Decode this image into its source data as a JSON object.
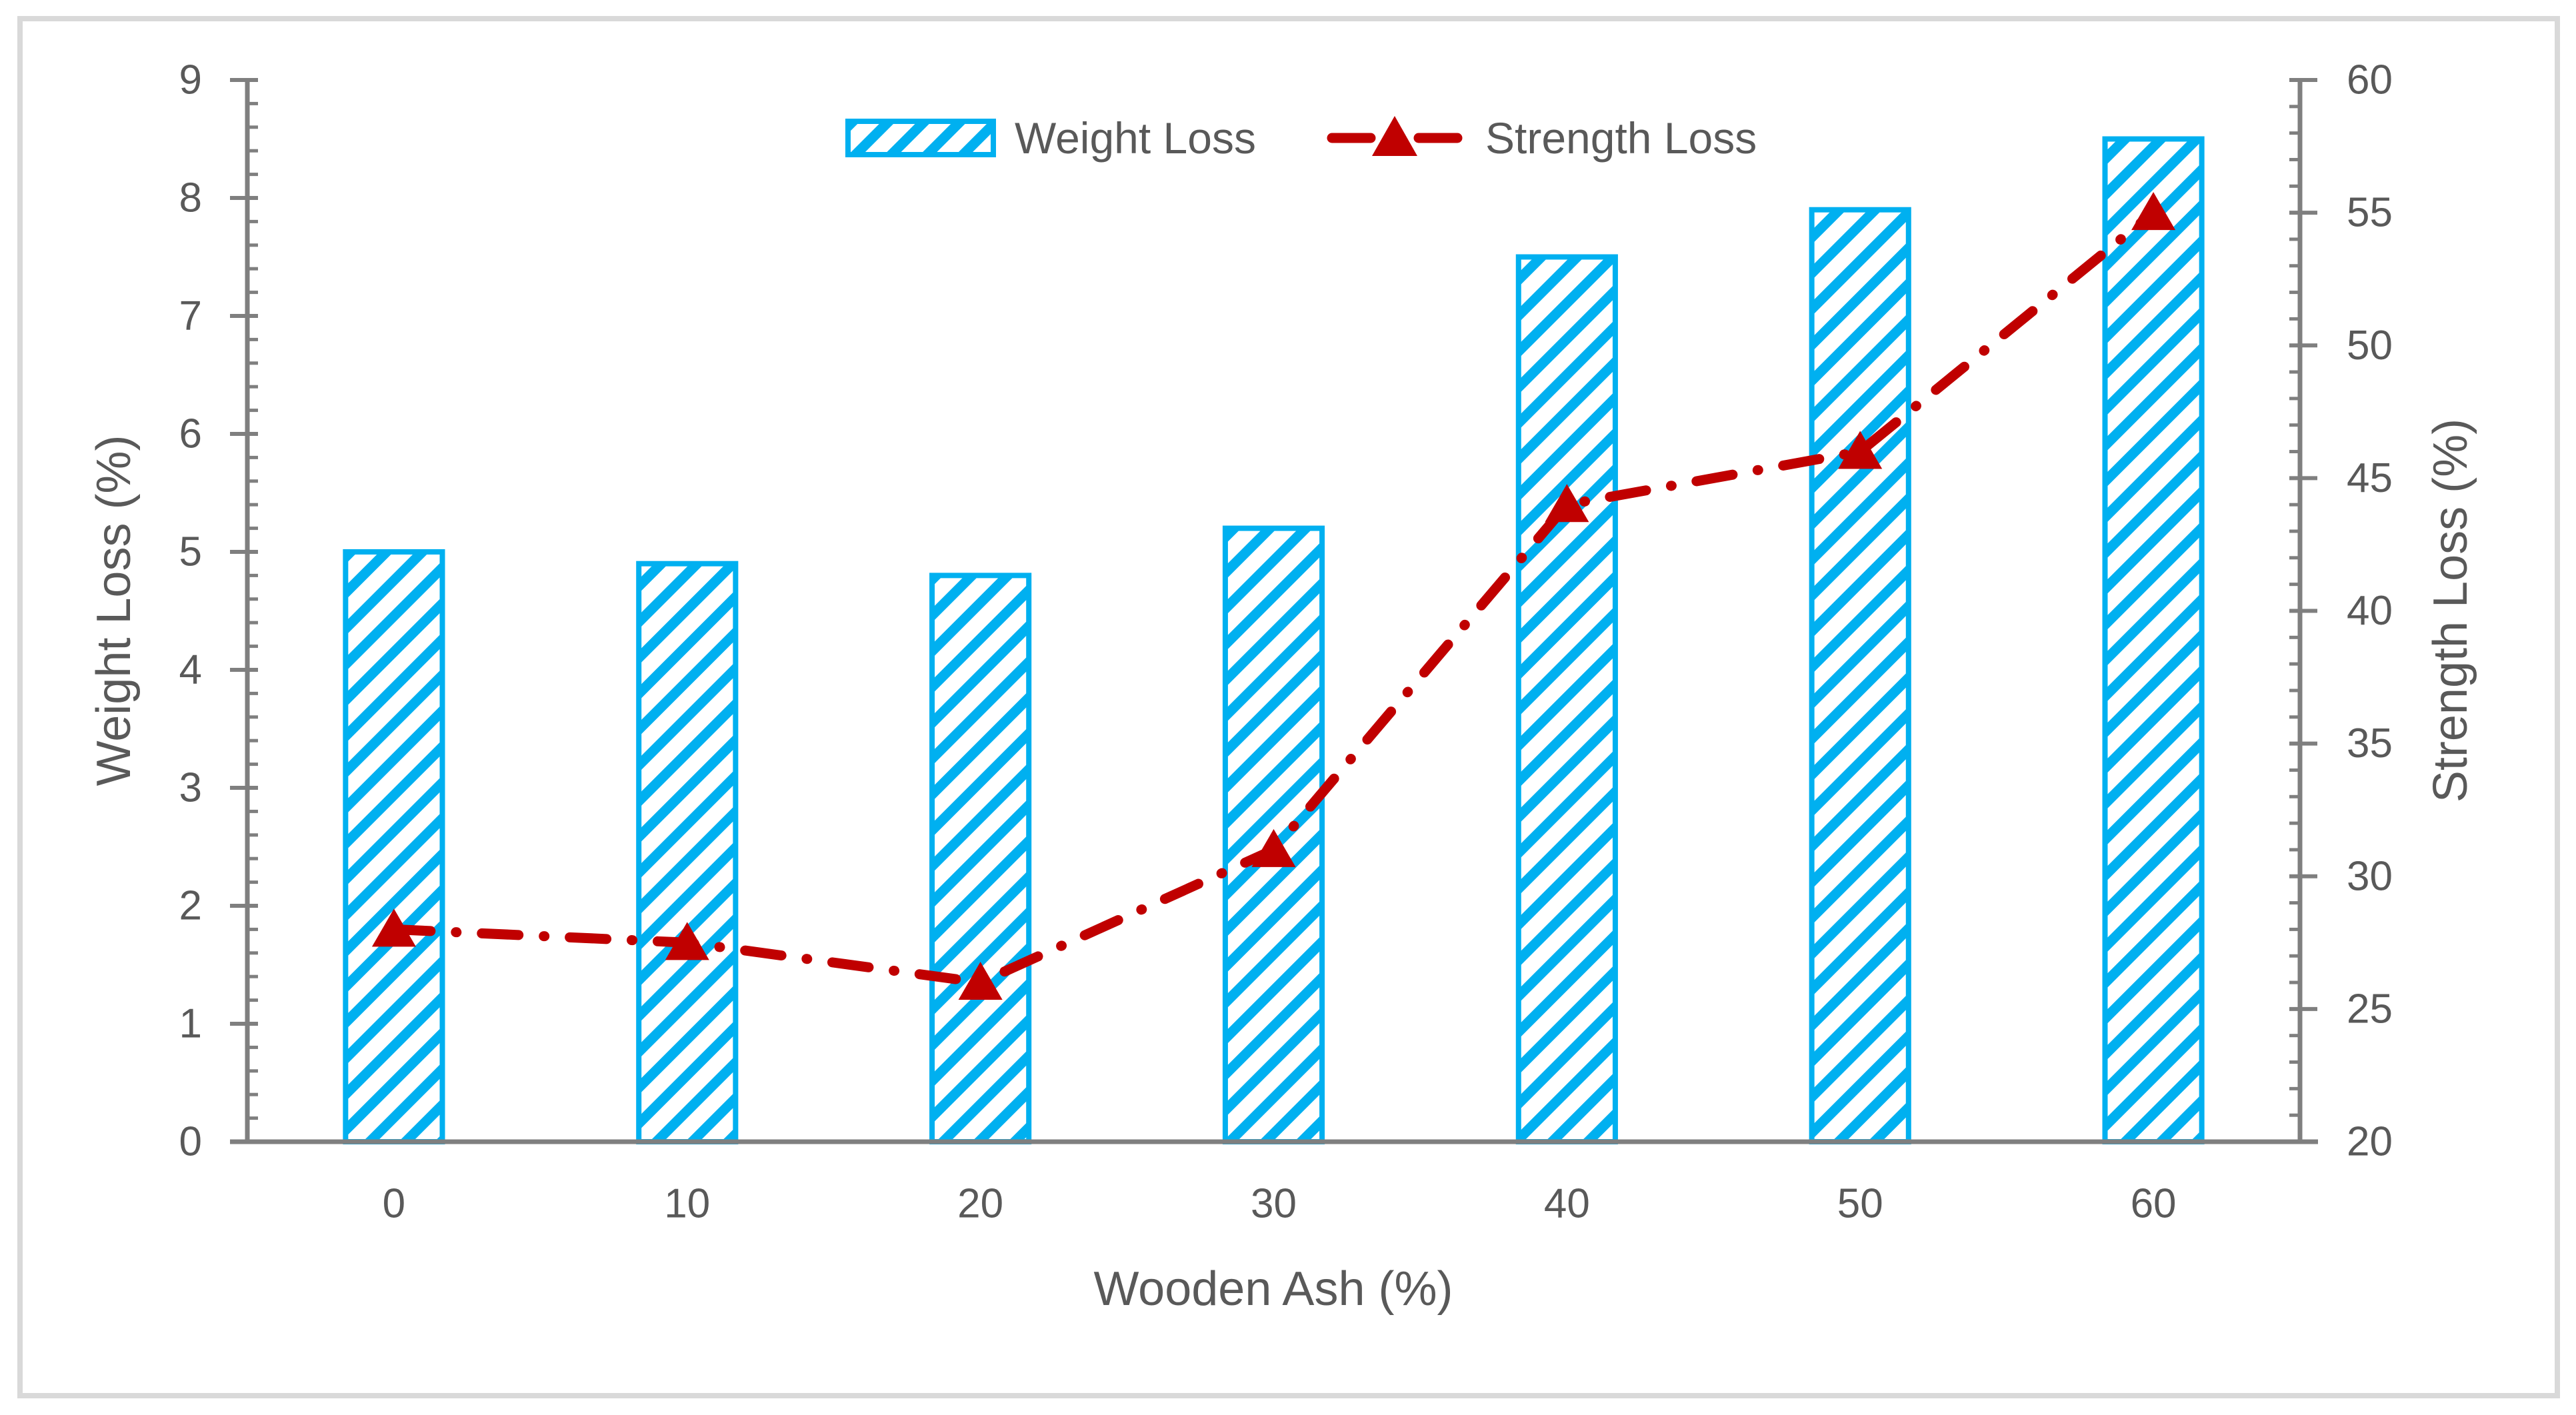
{
  "figure": {
    "background": "#FFFFFF",
    "border_color": "#D9D9D9"
  },
  "legend": {
    "position": "top-center",
    "items": [
      {
        "label": "Weight Loss",
        "swatch": "hatched-bar-swatch",
        "color": "#00B0F0"
      },
      {
        "label": "Strength Loss",
        "swatch": "dash-dot-triangle-marker",
        "color": "#C00000"
      }
    ]
  },
  "chart_data": {
    "type": "combo",
    "categories": [
      "0",
      "10",
      "20",
      "30",
      "40",
      "50",
      "60"
    ],
    "series": [
      {
        "name": "Weight Loss",
        "type": "bar",
        "axis": "left",
        "values": [
          5.0,
          4.9,
          4.8,
          5.2,
          7.5,
          7.9,
          8.5
        ],
        "color": "#00B0F0",
        "fill_pattern": "diagonal-hatch",
        "bar_width_ratio": 0.33
      },
      {
        "name": "Strength Loss",
        "type": "line",
        "axis": "right",
        "values": [
          28,
          27.5,
          26,
          31,
          44,
          46,
          55
        ],
        "color": "#C00000",
        "line_style": "dash-dot",
        "marker": "triangle-up"
      }
    ],
    "xlabel": "Wooden Ash (%)",
    "ylabel_left": "Weight Loss (%)",
    "ylabel_right": "Strength Loss (%)",
    "y_left": {
      "min": 0,
      "max": 9,
      "major_step": 1,
      "minor_step": 0.2,
      "tick_labels": [
        "0",
        "1",
        "2",
        "3",
        "4",
        "5",
        "6",
        "7",
        "8",
        "9"
      ]
    },
    "y_right": {
      "min": 20,
      "max": 60,
      "major_step": 5,
      "minor_step": 1,
      "tick_labels": [
        "20",
        "25",
        "30",
        "35",
        "40",
        "45",
        "50",
        "55",
        "60"
      ]
    },
    "grid": false,
    "axis_color": "#7F7F7F",
    "text_color": "#595959",
    "legend_position": "top-center"
  }
}
